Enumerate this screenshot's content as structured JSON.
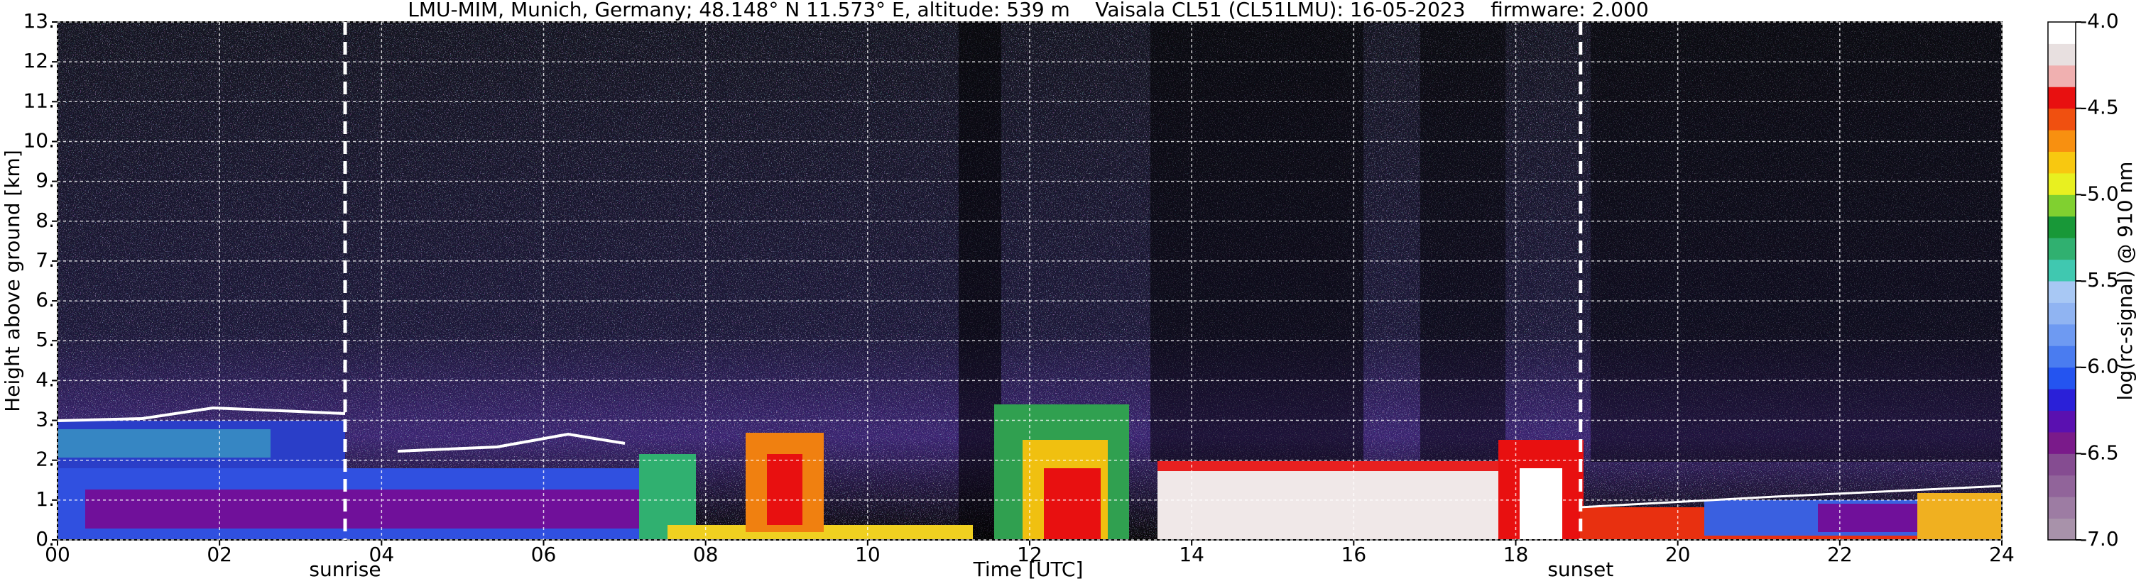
{
  "chart_data": {
    "type": "heatmap",
    "title": "LMU-MIM, Munich, Germany; 48.148° N 11.573° E, altitude: 539 m    Vaisala CL51 (CL51LMU): 16-05-2023    firmware: 2.000",
    "x_label": "Time [UTC]",
    "y_label": "Height above ground [km]",
    "colorbar_label": "log(rc-signal) @ 910 nm",
    "xlim": [
      0,
      24
    ],
    "xticks": [
      {
        "value": 0,
        "label": "00"
      },
      {
        "value": 2,
        "label": "02"
      },
      {
        "value": 4,
        "label": "04"
      },
      {
        "value": 6,
        "label": "06"
      },
      {
        "value": 8,
        "label": "08"
      },
      10,
      12,
      14,
      16,
      18,
      20,
      22,
      24
    ],
    "ylim": [
      0,
      13
    ],
    "yticks": [
      {
        "value": 0,
        "label": "0."
      },
      {
        "value": 1,
        "label": "1."
      },
      {
        "value": 2,
        "label": "2."
      },
      {
        "value": 3,
        "label": "3."
      },
      {
        "value": 4,
        "label": "4."
      },
      {
        "value": 5,
        "label": "5."
      },
      {
        "value": 6,
        "label": "6."
      },
      {
        "value": 7,
        "label": "7."
      },
      {
        "value": 8,
        "label": "8."
      },
      {
        "value": 9,
        "label": "9."
      },
      {
        "value": 10,
        "label": "10."
      },
      {
        "value": 11,
        "label": "11."
      },
      {
        "value": 12,
        "label": "12."
      },
      {
        "value": 13,
        "label": "13."
      }
    ],
    "grid": true,
    "colorbar_lim": [
      -7.0,
      -4.0
    ],
    "colorbar_ticks": [
      {
        "value": -7.0,
        "label": "-7.0"
      },
      {
        "value": -6.5,
        "label": "-6.5"
      },
      {
        "value": -6.0,
        "label": "-6.0"
      },
      {
        "value": -5.5,
        "label": "-5.5"
      },
      {
        "value": -5.0,
        "label": "-5.0"
      },
      {
        "value": -4.5,
        "label": "-4.5"
      },
      {
        "value": -4.0,
        "label": "-4.0"
      }
    ],
    "colorbar_colors": [
      "#a892aa",
      "#9d7ca3",
      "#91649a",
      "#854c91",
      "#7a1a8a",
      "#5a10b0",
      "#2a20d8",
      "#2454f0",
      "#4a7cf0",
      "#6e9af2",
      "#90b4f2",
      "#a8c8f4",
      "#40c8b0",
      "#30b070",
      "#189838",
      "#80d030",
      "#e8f020",
      "#f8c810",
      "#f89010",
      "#f05010",
      "#e81010",
      "#f0b0b0",
      "#e8e0e0",
      "#ffffff"
    ],
    "annotations": [
      {
        "text": "sunrise",
        "x": 3.55
      },
      {
        "text": "sunset",
        "x": 18.8
      }
    ]
  }
}
